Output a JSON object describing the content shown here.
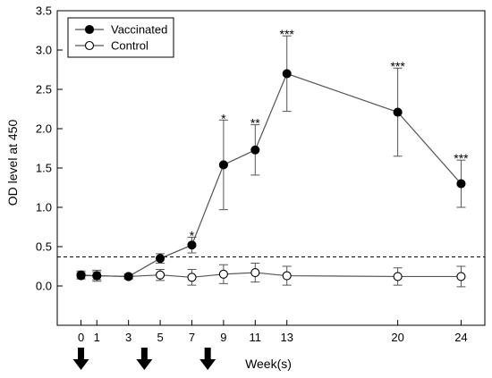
{
  "chart_data": {
    "type": "line",
    "xlabel": "Week(s)",
    "ylabel": "OD level at 450",
    "xlim": [
      -1.5,
      25.5
    ],
    "ylim": [
      -0.5,
      3.5
    ],
    "x_ticks": [
      0,
      1,
      3,
      5,
      7,
      9,
      11,
      13,
      20,
      24
    ],
    "y_ticks": [
      0.0,
      0.5,
      1.0,
      1.5,
      2.0,
      2.5,
      3.0,
      3.5
    ],
    "y_tick_labels": [
      "0.0",
      "0.5",
      "1.0",
      "1.5",
      "2.0",
      "2.5",
      "3.0",
      "3.5"
    ],
    "grid": false,
    "legend": "top-left",
    "threshold": {
      "y": 0.37,
      "style": "dashed"
    },
    "vaccination_arrows_x": [
      0,
      4,
      8
    ],
    "series": [
      {
        "name": "Vaccinated",
        "marker": "filled-circle",
        "color": "#000000",
        "x": [
          0,
          1,
          3,
          5,
          7,
          9,
          11,
          13,
          20,
          24
        ],
        "y": [
          0.13,
          0.13,
          0.12,
          0.35,
          0.52,
          1.54,
          1.73,
          2.7,
          2.21,
          1.3
        ],
        "error": [
          0.04,
          0.05,
          0.03,
          0.06,
          0.1,
          0.57,
          0.32,
          0.48,
          0.56,
          0.3
        ],
        "significance": [
          "",
          "",
          "",
          "",
          "*",
          "*",
          "**",
          "***",
          "***",
          "***"
        ]
      },
      {
        "name": "Control",
        "marker": "open-circle",
        "color": "#000000",
        "x": [
          0,
          1,
          3,
          5,
          7,
          9,
          11,
          13,
          20,
          24
        ],
        "y": [
          0.14,
          0.13,
          0.12,
          0.14,
          0.11,
          0.15,
          0.17,
          0.13,
          0.12,
          0.12
        ],
        "error": [
          0.05,
          0.07,
          0.03,
          0.07,
          0.1,
          0.12,
          0.12,
          0.12,
          0.11,
          0.13
        ]
      }
    ]
  }
}
